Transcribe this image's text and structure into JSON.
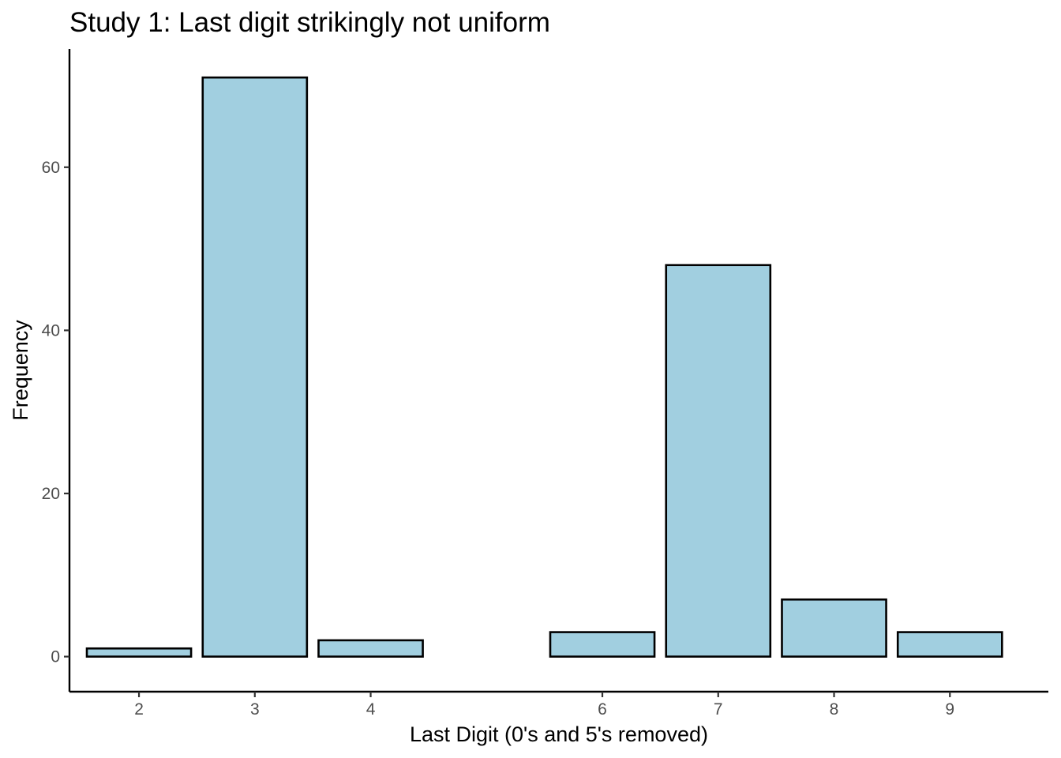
{
  "chart_data": {
    "type": "bar",
    "title": "Study 1: Last digit strikingly not uniform",
    "xlabel": "Last Digit (0's and 5's removed)",
    "ylabel": "Frequency",
    "x": [
      2,
      3,
      4,
      6,
      7,
      8,
      9
    ],
    "categories": [
      "2",
      "3",
      "4",
      "6",
      "7",
      "8",
      "9"
    ],
    "values": [
      1,
      71,
      2,
      3,
      48,
      7,
      3
    ],
    "xlim": [
      1.4,
      9.85
    ],
    "ylim": [
      -4.3,
      74.5
    ],
    "yticks": [
      0,
      20,
      40,
      60
    ],
    "bar_color": "#a1cfe0",
    "bar_edge_color": "#000000",
    "grid": false,
    "legend": "none"
  }
}
